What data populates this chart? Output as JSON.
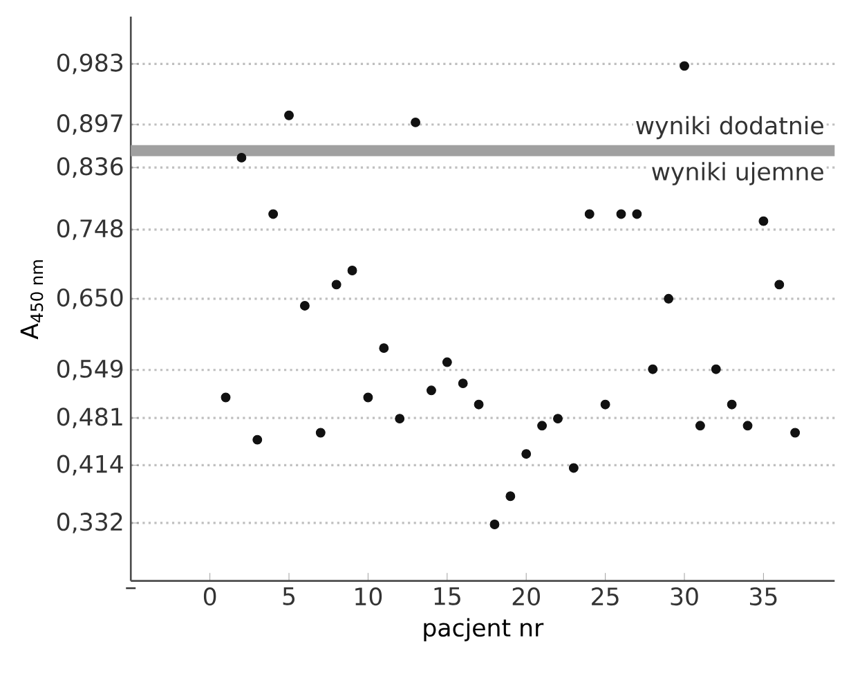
{
  "chart_data": {
    "type": "scatter",
    "xlabel": "pacjent nr",
    "ylabel": "A$_{450 nm}$",
    "x": [
      1,
      2,
      3,
      4,
      5,
      6,
      7,
      8,
      9,
      10,
      11,
      12,
      13,
      14,
      15,
      16,
      17,
      18,
      19,
      20,
      21,
      22,
      23,
      24,
      25,
      26,
      27,
      28,
      29,
      30,
      31,
      32,
      33,
      34,
      35,
      36,
      37
    ],
    "values": [
      0.51,
      0.85,
      0.45,
      0.77,
      0.91,
      0.64,
      0.46,
      0.67,
      0.69,
      0.51,
      0.58,
      0.48,
      0.9,
      0.52,
      0.56,
      0.53,
      0.5,
      0.33,
      0.37,
      0.43,
      0.47,
      0.48,
      0.41,
      0.77,
      0.5,
      0.77,
      0.77,
      0.55,
      0.65,
      0.98,
      0.47,
      0.55,
      0.5,
      0.47,
      0.76,
      0.67,
      0.46
    ],
    "color": "#111111",
    "grid": "y",
    "xlim": [
      -5,
      39.5
    ],
    "ylim": [
      0.25,
      1.05
    ],
    "xticks": [
      {
        "value": -5,
        "label": "–"
      },
      0,
      5,
      10,
      15,
      20,
      25,
      30,
      35
    ],
    "yticks": [
      {
        "value": 0.332,
        "label": "0,332"
      },
      {
        "value": 0.414,
        "label": "0,414"
      },
      {
        "value": 0.481,
        "label": "0,481"
      },
      {
        "value": 0.549,
        "label": "0,549"
      },
      {
        "value": 0.65,
        "label": "0,650"
      },
      {
        "value": 0.748,
        "label": "0,748"
      },
      {
        "value": 0.836,
        "label": "0,836"
      },
      {
        "value": 0.897,
        "label": "0,897"
      },
      {
        "value": 0.983,
        "label": "0,983"
      }
    ],
    "ref_lines": [
      {
        "axis": "y",
        "value": 0.86,
        "color": "#a0a0a0"
      }
    ],
    "annotations": [
      {
        "text": "wyniki dodatnie",
        "x": 39,
        "y": 0.86
      },
      {
        "text": "wyniki ujemne",
        "x": 39,
        "y": 0.86
      }
    ]
  }
}
